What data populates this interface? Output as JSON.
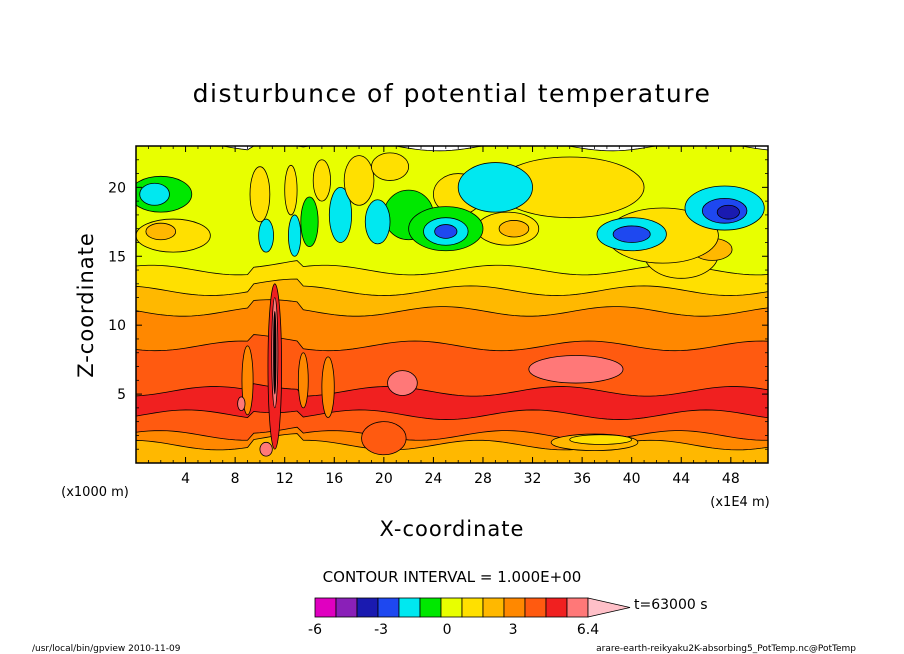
{
  "chart_data": {
    "type": "heatmap",
    "title": "disturbunce of potential temperature",
    "xlabel": "X-coordinate",
    "ylabel": "Z-coordinate",
    "x_scale_note": "(x1E4 m)",
    "y_scale_note": "(x1000 m)",
    "xlim": [
      0,
      51
    ],
    "ylim": [
      0,
      23
    ],
    "x_ticks": [
      4,
      8,
      12,
      16,
      20,
      24,
      28,
      32,
      36,
      40,
      44,
      48
    ],
    "y_ticks": [
      5,
      10,
      15,
      20
    ],
    "contour_interval_label": "CONTOUR INTERVAL = 1.000E+00",
    "time_label": "t=63000 s",
    "colorbar": {
      "levels": [
        -6,
        -5,
        -4,
        -3,
        -2,
        -1,
        0,
        1,
        2,
        3,
        4,
        5,
        6.4
      ],
      "labels": [
        "-6",
        "-3",
        "0",
        "3",
        "6.4"
      ],
      "label_values": [
        -6,
        -3,
        0,
        3,
        6.4
      ],
      "colors": [
        "#e000c0",
        "#8a20b8",
        "#1a1ab0",
        "#1e48f0",
        "#00e8f0",
        "#00e800",
        "#e8ff00",
        "#ffe000",
        "#ffb800",
        "#ff8800",
        "#ff5a10",
        "#f02020",
        "#ff7878"
      ],
      "extend_color": "#ffc0c8"
    },
    "bands": [
      {
        "z_top": 1.3,
        "value": 2
      },
      {
        "z_top": 2.0,
        "value": 3
      },
      {
        "z_top": 3.5,
        "value": 4
      },
      {
        "z_top": 5.2,
        "value": 5
      },
      {
        "z_top": 8.5,
        "value": 4
      },
      {
        "z_top": 11.0,
        "value": 3
      },
      {
        "z_top": 12.5,
        "value": 2
      },
      {
        "z_top": 14.0,
        "value": 1
      },
      {
        "z_top": 23.0,
        "value": 0
      }
    ],
    "blobs": [
      {
        "x": 35.5,
        "z": 6.8,
        "rx": 3.8,
        "rz": 1.0,
        "value": 6
      },
      {
        "x": 21.5,
        "z": 5.8,
        "rx": 1.2,
        "rz": 0.9,
        "value": 6
      },
      {
        "x": 20.0,
        "z": 1.8,
        "rx": 1.8,
        "rz": 1.2,
        "value": 4
      },
      {
        "x": 37.0,
        "z": 1.5,
        "rx": 3.5,
        "rz": 0.6,
        "value": 2
      },
      {
        "x": 37.5,
        "z": 1.7,
        "rx": 2.5,
        "rz": 0.35,
        "value": 1
      },
      {
        "x": 44.0,
        "z": 15.2,
        "rx": 3.0,
        "rz": 1.8,
        "value": 1
      },
      {
        "x": 46.5,
        "z": 15.5,
        "rx": 1.6,
        "rz": 0.8,
        "value": 2
      },
      {
        "x": 42.5,
        "z": 16.5,
        "rx": 4.5,
        "rz": 2.0,
        "value": 1
      },
      {
        "x": 35.0,
        "z": 20.0,
        "rx": 6.0,
        "rz": 2.2,
        "value": 1
      },
      {
        "x": 40.0,
        "z": 16.6,
        "rx": 2.8,
        "rz": 1.2,
        "value": -2
      },
      {
        "x": 40.0,
        "z": 16.6,
        "rx": 1.5,
        "rz": 0.6,
        "value": -3
      },
      {
        "x": 47.5,
        "z": 18.5,
        "rx": 3.2,
        "rz": 1.6,
        "value": -2
      },
      {
        "x": 47.5,
        "z": 18.3,
        "rx": 1.8,
        "rz": 0.9,
        "value": -3
      },
      {
        "x": 47.8,
        "z": 18.2,
        "rx": 0.9,
        "rz": 0.5,
        "value": -4
      },
      {
        "x": 30.0,
        "z": 17.0,
        "rx": 2.5,
        "rz": 1.2,
        "value": 1
      },
      {
        "x": 30.5,
        "z": 17.0,
        "rx": 1.2,
        "rz": 0.6,
        "value": 2
      },
      {
        "x": 26.0,
        "z": 19.5,
        "rx": 2.0,
        "rz": 1.5,
        "value": 1
      },
      {
        "x": 22.0,
        "z": 18.0,
        "rx": 2.0,
        "rz": 1.8,
        "value": -1
      },
      {
        "x": 25.0,
        "z": 17.0,
        "rx": 3.0,
        "rz": 1.6,
        "value": -1
      },
      {
        "x": 25.0,
        "z": 16.8,
        "rx": 1.8,
        "rz": 1.0,
        "value": -2
      },
      {
        "x": 25.0,
        "z": 16.8,
        "rx": 0.9,
        "rz": 0.5,
        "value": -3
      },
      {
        "x": 29.5,
        "z": 20.0,
        "rx": 2.0,
        "rz": 1.2,
        "value": -3
      },
      {
        "x": 29.0,
        "z": 20.0,
        "rx": 3.0,
        "rz": 1.8,
        "value": -2
      },
      {
        "x": 19.5,
        "z": 17.5,
        "rx": 1.0,
        "rz": 1.6,
        "value": -2
      },
      {
        "x": 16.5,
        "z": 18.0,
        "rx": 0.9,
        "rz": 2.0,
        "value": -2
      },
      {
        "x": 14.0,
        "z": 17.5,
        "rx": 0.7,
        "rz": 1.8,
        "value": -1
      },
      {
        "x": 12.8,
        "z": 16.5,
        "rx": 0.5,
        "rz": 1.5,
        "value": -2
      },
      {
        "x": 10.5,
        "z": 16.5,
        "rx": 0.6,
        "rz": 1.2,
        "value": -2
      },
      {
        "x": 3.0,
        "z": 16.5,
        "rx": 3.0,
        "rz": 1.2,
        "value": 1
      },
      {
        "x": 2.0,
        "z": 16.8,
        "rx": 1.2,
        "rz": 0.6,
        "value": 2
      },
      {
        "x": 2.0,
        "z": 19.5,
        "rx": 2.5,
        "rz": 1.3,
        "value": -1
      },
      {
        "x": 1.5,
        "z": 19.5,
        "rx": 1.2,
        "rz": 0.8,
        "value": -2
      },
      {
        "x": 18.0,
        "z": 20.5,
        "rx": 1.2,
        "rz": 1.8,
        "value": 1
      },
      {
        "x": 20.5,
        "z": 21.5,
        "rx": 1.5,
        "rz": 1.0,
        "value": 1
      },
      {
        "x": 10.0,
        "z": 19.5,
        "rx": 0.8,
        "rz": 2.0,
        "value": 1
      },
      {
        "x": 15.0,
        "z": 20.5,
        "rx": 0.7,
        "rz": 1.5,
        "value": 1
      },
      {
        "x": 12.5,
        "z": 19.8,
        "rx": 0.5,
        "rz": 1.8,
        "value": 1
      },
      {
        "x": 11.2,
        "z": 7.0,
        "rx": 0.55,
        "rz": 6.0,
        "value": 5
      },
      {
        "x": 11.2,
        "z": 8.0,
        "rx": 0.25,
        "rz": 4.0,
        "value": 6
      },
      {
        "x": 11.2,
        "z": 8.0,
        "rx": 0.1,
        "rz": 3.0,
        "value": 6.4
      },
      {
        "x": 13.5,
        "z": 6.0,
        "rx": 0.4,
        "rz": 2.0,
        "value": 3
      },
      {
        "x": 15.5,
        "z": 5.5,
        "rx": 0.5,
        "rz": 2.2,
        "value": 3
      },
      {
        "x": 9.0,
        "z": 6.0,
        "rx": 0.45,
        "rz": 2.5,
        "value": 3
      },
      {
        "x": 8.5,
        "z": 4.3,
        "rx": 0.3,
        "rz": 0.5,
        "value": 6
      },
      {
        "x": 10.5,
        "z": 1.0,
        "rx": 0.5,
        "rz": 0.5,
        "value": 6
      }
    ]
  },
  "footer": {
    "left_note": "/usr/local/bin/gpview  2010-11-09",
    "right_note": "arare-earth-reikyaku2K-absorbing5_PotTemp.nc@PotTemp"
  }
}
